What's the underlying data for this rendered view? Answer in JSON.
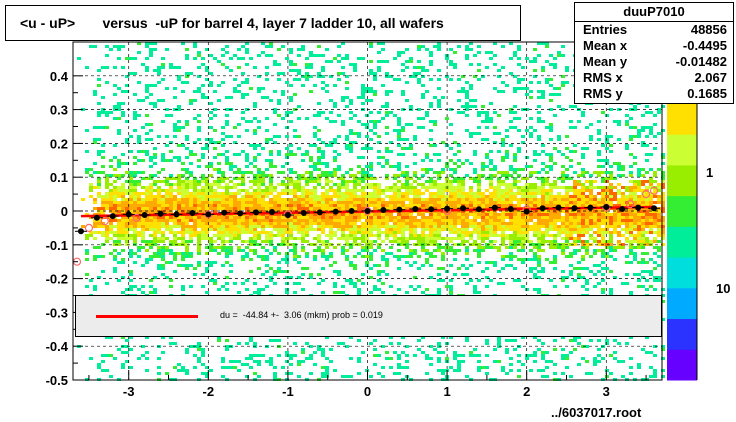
{
  "title": "<u - uP>       versus  -uP for barrel 4, layer 7 ladder 10, all wafers",
  "stats": {
    "name": "duuP7010",
    "rows": [
      {
        "label": "Entries",
        "value": "48856"
      },
      {
        "label": "Mean x",
        "value": "-0.4495"
      },
      {
        "label": "Mean y",
        "value": "-0.01482"
      },
      {
        "label": "RMS x",
        "value": "2.067"
      },
      {
        "label": "RMS y",
        "value": "0.1685"
      }
    ]
  },
  "fit_legend": "du =  -44.84 +-  3.06 (mkm) prob = 0.019",
  "file_label": "../6037017.root",
  "colors": {
    "fit_line": "#ff0000",
    "profile_points": "#000000",
    "open_markers": "#ff6a6a",
    "palette": [
      "#6600ff",
      "#2a33ff",
      "#00aaff",
      "#00dddd",
      "#00ee99",
      "#33ee33",
      "#99ee00",
      "#ccff33",
      "#ffe000",
      "#ffaa00",
      "#ff6600"
    ]
  },
  "chart_data": {
    "type": "heatmap",
    "xlim": [
      -3.7,
      3.7
    ],
    "ylim": [
      -0.5,
      0.5
    ],
    "x_ticks": [
      -3,
      -2,
      -1,
      0,
      1,
      2,
      3
    ],
    "y_ticks": [
      -0.5,
      -0.4,
      -0.3,
      -0.2,
      -0.1,
      0,
      0.1,
      0.2,
      0.3,
      0.4
    ],
    "y_tick_labels": [
      "-0.5",
      "-0.4",
      "-0.3",
      "-0.2",
      "-0.1",
      "0",
      "0.1",
      "0.2",
      "0.3",
      "0.4"
    ],
    "z_labels": [
      "1",
      "10"
    ],
    "grid": true,
    "fit_line": {
      "x": [
        -3.6,
        3.6
      ],
      "y": [
        -0.015,
        0.012
      ]
    },
    "profile": {
      "x": [
        -3.6,
        -3.4,
        -3.2,
        -3.0,
        -2.8,
        -2.6,
        -2.4,
        -2.2,
        -2.0,
        -1.8,
        -1.6,
        -1.4,
        -1.2,
        -1.0,
        -0.8,
        -0.6,
        -0.4,
        -0.2,
        0.0,
        0.2,
        0.4,
        0.6,
        0.8,
        1.0,
        1.2,
        1.4,
        1.6,
        1.8,
        2.0,
        2.2,
        2.4,
        2.6,
        2.8,
        3.0,
        3.2,
        3.4,
        3.6
      ],
      "y": [
        -0.06,
        -0.02,
        -0.015,
        -0.01,
        -0.012,
        -0.008,
        -0.01,
        -0.006,
        -0.01,
        -0.005,
        -0.007,
        -0.004,
        -0.003,
        -0.012,
        -0.006,
        -0.004,
        -0.002,
        0.0,
        0.0,
        0.003,
        0.004,
        0.006,
        0.005,
        0.007,
        0.008,
        0.005,
        0.01,
        0.006,
        -0.002,
        0.008,
        0.01,
        0.008,
        0.01,
        0.012,
        0.006,
        0.01,
        0.008
      ]
    },
    "open_markers": {
      "x": [
        -3.65,
        -3.5,
        -3.3,
        -2.9,
        -2.0,
        -1.0,
        0.0,
        1.0,
        2.0,
        3.0,
        3.3,
        3.5,
        3.6
      ],
      "y": [
        -0.15,
        -0.05,
        -0.03,
        -0.02,
        -0.01,
        -0.01,
        0.0,
        0.0,
        0.005,
        0.01,
        0.02,
        0.05,
        0.06
      ]
    }
  }
}
